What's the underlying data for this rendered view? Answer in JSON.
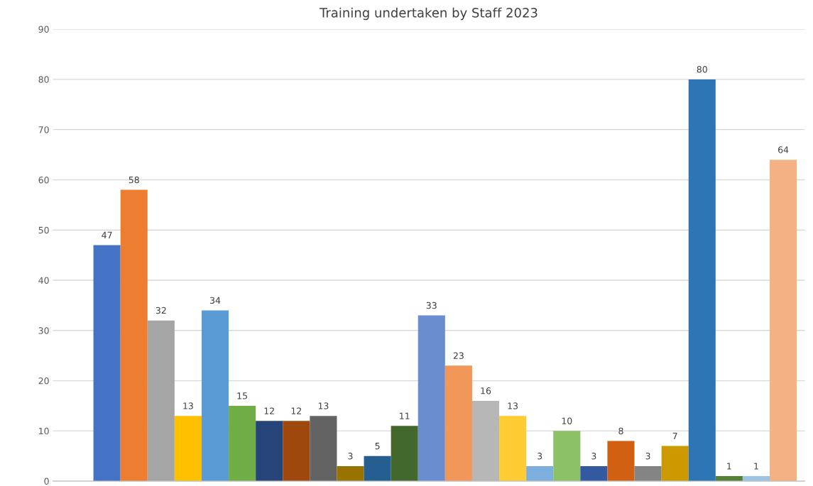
{
  "chart_data": {
    "type": "bar",
    "title": "Training undertaken by Staff 2023",
    "categories": [
      null,
      null,
      null,
      null,
      null,
      null,
      null,
      null,
      null,
      null,
      null,
      null,
      null,
      null,
      null,
      null,
      null,
      null,
      null,
      null,
      null,
      null,
      null,
      null,
      null,
      null
    ],
    "values": [
      47,
      58,
      32,
      13,
      34,
      15,
      12,
      12,
      13,
      3,
      5,
      11,
      33,
      23,
      16,
      13,
      3,
      10,
      3,
      8,
      3,
      7,
      80,
      1,
      1,
      64
    ],
    "colors": [
      "#4472c4",
      "#ed7d31",
      "#a5a5a5",
      "#ffc000",
      "#5b9bd5",
      "#70ad47",
      "#264478",
      "#9e480e",
      "#636363",
      "#997300",
      "#255e91",
      "#43682b",
      "#698ed0",
      "#f1975a",
      "#b7b7b7",
      "#ffcd33",
      "#7cafdd",
      "#8cc168",
      "#335aa1",
      "#d26012",
      "#848484",
      "#cc9a00",
      "#2e75b6",
      "#548235",
      "#9dc3e6",
      "#f4b183"
    ],
    "ylim": [
      0,
      90
    ],
    "yticks": [
      0,
      10,
      20,
      30,
      40,
      50,
      60,
      70,
      80,
      90
    ],
    "grid": "y",
    "data_labels": true,
    "tick_labels": "y"
  }
}
